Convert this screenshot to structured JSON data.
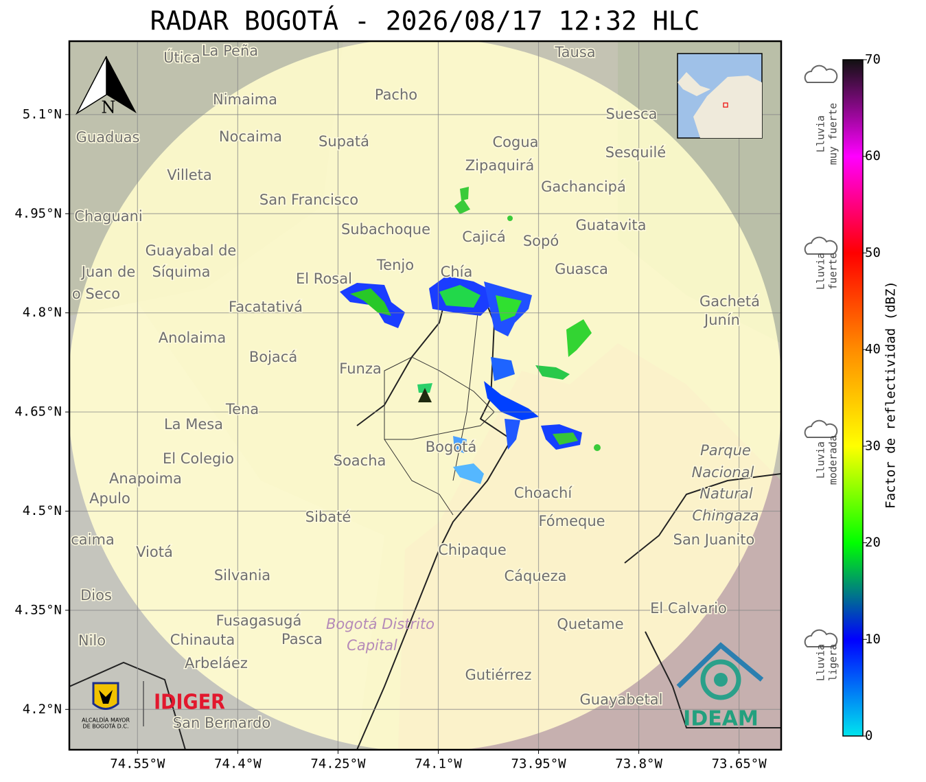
{
  "title": "RADAR BOGOTÁ - 2026/08/17 12:32 HLC",
  "map": {
    "xlim": [
      -74.652,
      -73.587
    ],
    "ylim": [
      4.139,
      5.211
    ],
    "xticks": [
      {
        "value": -74.55,
        "label": "74.55°W"
      },
      {
        "value": -74.4,
        "label": "74.4°W"
      },
      {
        "value": -74.25,
        "label": "74.25°W"
      },
      {
        "value": -74.1,
        "label": "74.1°W"
      },
      {
        "value": -73.95,
        "label": "73.95°W"
      },
      {
        "value": -73.8,
        "label": "73.8°W"
      },
      {
        "value": -73.65,
        "label": "73.65°W"
      }
    ],
    "yticks": [
      {
        "value": 5.1,
        "label": "5.1°N"
      },
      {
        "value": 4.95,
        "label": "4.95°N"
      },
      {
        "value": 4.8,
        "label": "4.8°N"
      },
      {
        "value": 4.65,
        "label": "4.65°N"
      },
      {
        "value": 4.5,
        "label": "4.5°N"
      },
      {
        "value": 4.35,
        "label": "4.35°N"
      },
      {
        "value": 4.2,
        "label": "4.2°N"
      }
    ],
    "places": [
      "Útica",
      "La Peña",
      "Tausa",
      "Pacho",
      "Nimaima",
      "Suesca",
      "Guaduas",
      "Nocaima",
      "Supatá",
      "Cogua",
      "Sesquilé",
      "Zipaquirá",
      "Villeta",
      "Gachancipá",
      "San Francisco",
      "Chaguani",
      "Guatavita",
      "Subachoque",
      "Cajicá",
      "Sopó",
      "Guayabal de",
      "Síquima",
      "Juan de",
      "Tenjo",
      "Guasca",
      "El Rosal",
      "Chía",
      "o Seco",
      "Gachetá",
      "Facatativá",
      "Junín",
      "Anolaima",
      "Bojacá",
      "Funza",
      "Tena",
      "La Mesa",
      "Bogotá",
      "Parque",
      "El Colegio",
      "Soacha",
      "Nacional",
      "Anapoima",
      "Natural",
      "Apulo",
      "Choachí",
      "Chingaza",
      "Sibaté",
      "Fómeque",
      "San Juanito",
      "caima",
      "Viotá",
      "Chipaque",
      "Silvania",
      "Cáqueza",
      "Dios",
      "El Calvario",
      "Fusagasugá",
      "Bogotá Distrito",
      "Quetame",
      "Nilo",
      "Chinauta",
      "Pasca",
      "Capital",
      "Arbeláez",
      "Gutiérrez",
      "Guayabetal",
      "San Bernardo"
    ],
    "north": "N"
  },
  "colorbar": {
    "label": "Factor de reflectividad (dBZ)",
    "clim": [
      0,
      70
    ],
    "ticks": [
      0,
      10,
      20,
      30,
      40,
      50,
      60,
      70
    ],
    "colors": [
      "#00e5ee",
      "#0000ff",
      "#00ff00",
      "#ffff00",
      "#ff8c00",
      "#ff0000",
      "#ff00ff",
      "#111111"
    ]
  },
  "levels": [
    [
      "Lluvia",
      "muy fuerte"
    ],
    [
      "Lluvia",
      "fuerte"
    ],
    [
      "Lluvia",
      "moderada"
    ],
    [
      "Lluvia",
      "ligera"
    ]
  ],
  "logos": {
    "idiger": "IDIGER",
    "ideam": "IDEAM",
    "alcaldia": [
      "ALCALDÍA MAYOR",
      "DE BOGOTÁ D.C."
    ]
  }
}
